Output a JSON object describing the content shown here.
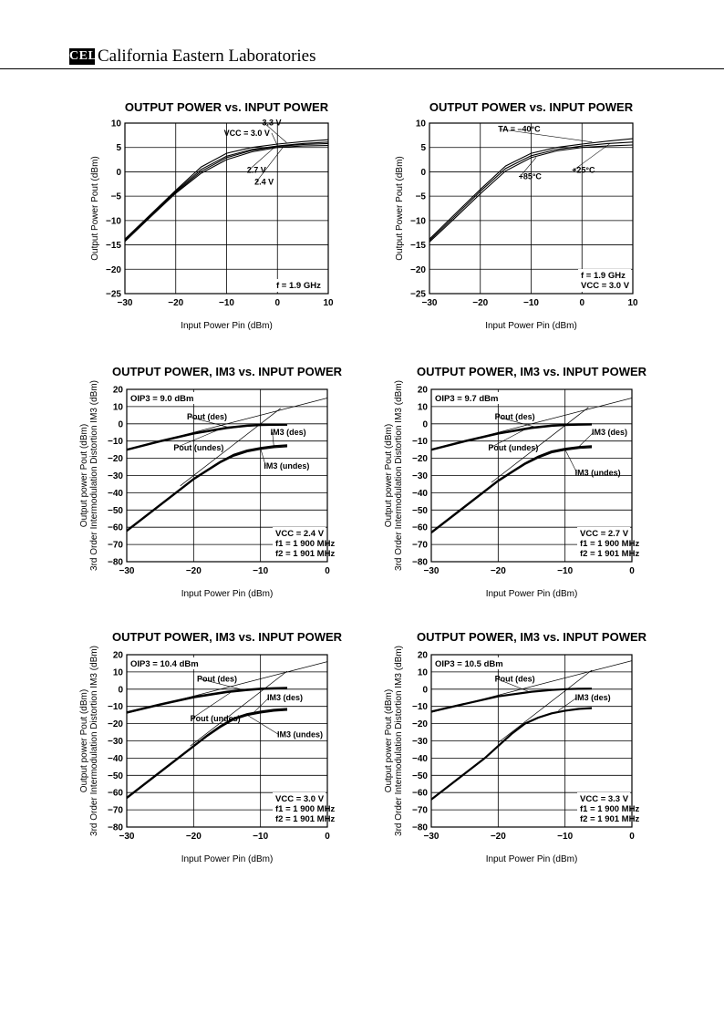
{
  "header": {
    "logo": "CEL",
    "company": "California Eastern Laboratories"
  },
  "chart_data": [
    {
      "type": "line",
      "title": "OUTPUT POWER vs. INPUT POWER",
      "xlabel": "Input Power  Pin (dBm)",
      "ylabel": "Output Power  Pout (dBm)",
      "xlim": [
        -30,
        10
      ],
      "ylim": [
        -25,
        10
      ],
      "xticks": [
        -30,
        -20,
        -10,
        0,
        10
      ],
      "yticks": [
        10,
        5,
        0,
        -5,
        -10,
        -15,
        -20,
        -25
      ],
      "grid": true,
      "series": [
        {
          "name": "VCC = 3.0 V",
          "x": [
            -30,
            -25,
            -20,
            -15,
            -10,
            -5,
            0,
            5,
            10
          ],
          "y": [
            -14,
            -9,
            -4,
            0.5,
            3.2,
            4.6,
            5.3,
            5.8,
            6.1
          ]
        },
        {
          "name": "3.3 V",
          "x": [
            -30,
            -25,
            -20,
            -15,
            -10,
            -5,
            0,
            5,
            10
          ],
          "y": [
            -13.8,
            -8.8,
            -3.8,
            1.0,
            3.8,
            5.0,
            5.7,
            6.2,
            6.6
          ]
        },
        {
          "name": "2.7 V",
          "x": [
            -30,
            -25,
            -20,
            -15,
            -10,
            -5,
            0,
            5,
            10
          ],
          "y": [
            -14.2,
            -9.2,
            -4.2,
            0.1,
            2.9,
            4.4,
            5.2,
            5.6,
            5.8
          ]
        },
        {
          "name": "2.4 V",
          "x": [
            -30,
            -25,
            -20,
            -15,
            -10,
            -5,
            0,
            5,
            10
          ],
          "y": [
            -14.3,
            -9.3,
            -4.4,
            -0.3,
            2.5,
            4.1,
            5.0,
            5.3,
            5.4
          ]
        }
      ],
      "annotations": [
        {
          "text": "f = 1.9 GHz"
        }
      ]
    },
    {
      "type": "line",
      "title": "OUTPUT POWER vs. INPUT POWER",
      "xlabel": "Input Power  Pin (dBm)",
      "ylabel": "Output Power  Pout (dBm)",
      "xlim": [
        -30,
        10
      ],
      "ylim": [
        -25,
        10
      ],
      "xticks": [
        -30,
        -20,
        -10,
        0,
        10
      ],
      "yticks": [
        10,
        5,
        0,
        -5,
        -10,
        -15,
        -20,
        -25
      ],
      "grid": true,
      "series": [
        {
          "name": "TA = –40°C",
          "x": [
            -30,
            -25,
            -20,
            -15,
            -10,
            -5,
            0,
            5,
            10
          ],
          "y": [
            -13.8,
            -8.7,
            -3.6,
            1.2,
            3.8,
            5.0,
            5.7,
            6.3,
            6.8
          ]
        },
        {
          "name": "+25°C",
          "x": [
            -30,
            -25,
            -20,
            -15,
            -10,
            -5,
            0,
            5,
            10
          ],
          "y": [
            -14.1,
            -9.1,
            -4.0,
            0.7,
            3.3,
            4.6,
            5.3,
            5.8,
            6.1
          ]
        },
        {
          "name": "+85°C",
          "x": [
            -30,
            -25,
            -20,
            -15,
            -10,
            -5,
            0,
            5,
            10
          ],
          "y": [
            -14.4,
            -9.5,
            -4.5,
            0.2,
            2.9,
            4.3,
            5.0,
            5.3,
            5.5
          ]
        }
      ],
      "annotations": [
        {
          "text": "f = 1.9 GHz"
        },
        {
          "text": "VCC = 3.0 V"
        }
      ]
    },
    {
      "type": "line",
      "title": "OUTPUT POWER, IM3 vs. INPUT POWER",
      "xlabel": "Input Power  Pin (dBm)",
      "ylabel": "Output power  Pout (dBm)",
      "ylabel2": "3rd Order Intermodulation Distortion  IM3 (dBm)",
      "xlim": [
        -30,
        0
      ],
      "ylim": [
        -80,
        20
      ],
      "xticks": [
        -30,
        -20,
        -10,
        0
      ],
      "yticks": [
        20,
        10,
        0,
        -10,
        -20,
        -30,
        -40,
        -50,
        -60,
        -70,
        -80
      ],
      "grid": true,
      "oip3_label": "OIP3 = 9.0 dBm",
      "series": [
        {
          "name": "Pout (des)",
          "x": [
            -30,
            -25,
            -20,
            -15,
            -12,
            -10,
            -8,
            -6
          ],
          "y": [
            -15,
            -10,
            -5.5,
            -2.2,
            -1.0,
            -0.6,
            -0.5,
            -0.4
          ]
        },
        {
          "name": "Pout (undes)",
          "x": [
            -30,
            -25,
            -20,
            -15,
            -12,
            -10,
            -8,
            -6
          ],
          "y": [
            -15.4,
            -10.5,
            -6.0,
            -2.7,
            -1.5,
            -1.0,
            -0.9,
            -0.8
          ]
        },
        {
          "name": "IM3 (des)",
          "x": [
            -30,
            -25,
            -22,
            -20,
            -18,
            -16,
            -14,
            -12,
            -10,
            -8,
            -6
          ],
          "y": [
            -62,
            -47,
            -38,
            -32,
            -27,
            -22,
            -18,
            -15.5,
            -14,
            -13,
            -12.5
          ]
        },
        {
          "name": "IM3 (undes)",
          "x": [
            -30,
            -25,
            -22,
            -20,
            -18,
            -16,
            -14,
            -12,
            -10,
            -8,
            -6
          ],
          "y": [
            -62.5,
            -47.5,
            -38.5,
            -32.5,
            -27.5,
            -22.6,
            -18.8,
            -16.3,
            -14.8,
            -13.8,
            -13.3
          ]
        },
        {
          "name": "",
          "x": [
            -30,
            0
          ],
          "y": [
            -15,
            15
          ]
        },
        {
          "name": "",
          "x": [
            -22,
            -7
          ],
          "y": [
            -36,
            9
          ]
        }
      ],
      "annotations": [
        {
          "text": "VCC = 2.4 V"
        },
        {
          "text": "f1 = 1 900 MHz"
        },
        {
          "text": "f2 = 1 901 MHz"
        }
      ]
    },
    {
      "type": "line",
      "title": "OUTPUT POWER, IM3 vs. INPUT POWER",
      "xlabel": "Input Power  Pin (dBm)",
      "ylabel": "Output power  Pout (dBm)",
      "ylabel2": "3rd Order Intermodulation Distortion  IM3 (dBm)",
      "xlim": [
        -30,
        0
      ],
      "ylim": [
        -80,
        20
      ],
      "xticks": [
        -30,
        -20,
        -10,
        0
      ],
      "yticks": [
        20,
        10,
        0,
        -10,
        -20,
        -30,
        -40,
        -50,
        -60,
        -70,
        -80
      ],
      "grid": true,
      "oip3_label": "OIP3 = 9.7 dBm",
      "series": [
        {
          "name": "Pout (des)",
          "x": [
            -30,
            -25,
            -20,
            -15,
            -12,
            -10,
            -8,
            -6
          ],
          "y": [
            -15,
            -10,
            -5.5,
            -2.2,
            -1.0,
            -0.5,
            -0.3,
            -0.2
          ]
        },
        {
          "name": "Pout (undes)",
          "x": [
            -30,
            -25,
            -20,
            -15,
            -12,
            -10,
            -8,
            -6
          ],
          "y": [
            -15.4,
            -10.5,
            -6.0,
            -2.7,
            -1.5,
            -1.0,
            -0.8,
            -0.7
          ]
        },
        {
          "name": "IM3 (des)",
          "x": [
            -30,
            -25,
            -22,
            -20,
            -18,
            -16,
            -14,
            -12,
            -10,
            -8,
            -6
          ],
          "y": [
            -63,
            -48,
            -39,
            -33,
            -28,
            -23,
            -19,
            -16,
            -14.5,
            -13.5,
            -13
          ]
        },
        {
          "name": "IM3 (undes)",
          "x": [
            -30,
            -25,
            -22,
            -20,
            -18,
            -16,
            -14,
            -12,
            -10,
            -8,
            -6
          ],
          "y": [
            -63.5,
            -48.5,
            -39.5,
            -33.5,
            -28.5,
            -23.6,
            -19.8,
            -16.8,
            -15.3,
            -14.3,
            -13.8
          ]
        },
        {
          "name": "",
          "x": [
            -30,
            0
          ],
          "y": [
            -15,
            15
          ]
        },
        {
          "name": "",
          "x": [
            -21,
            -6.5
          ],
          "y": [
            -34,
            9.5
          ]
        }
      ],
      "annotations": [
        {
          "text": "VCC = 2.7 V"
        },
        {
          "text": "f1 = 1 900 MHz"
        },
        {
          "text": "f2 = 1 901 MHz"
        }
      ]
    },
    {
      "type": "line",
      "title": "OUTPUT POWER, IM3 vs. INPUT POWER",
      "xlabel": "Input Power  Pin (dBm)",
      "ylabel": "Output power  Pout (dBm)",
      "ylabel2": "3rd Order Intermodulation Distortion  IM3 (dBm)",
      "xlim": [
        -30,
        0
      ],
      "ylim": [
        -80,
        20
      ],
      "xticks": [
        -30,
        -20,
        -10,
        0
      ],
      "yticks": [
        20,
        10,
        0,
        -10,
        -20,
        -30,
        -40,
        -50,
        -60,
        -70,
        -80
      ],
      "grid": true,
      "oip3_label": "OIP3 = 10.4 dBm",
      "series": [
        {
          "name": "Pout (des)",
          "x": [
            -30,
            -25,
            -20,
            -15,
            -12,
            -10,
            -8,
            -6
          ],
          "y": [
            -13.5,
            -8.8,
            -4.5,
            -1.5,
            -0.3,
            0.3,
            0.6,
            0.8
          ]
        },
        {
          "name": "Pout (undes)",
          "x": [
            -30,
            -25,
            -20,
            -15,
            -12,
            -10,
            -8,
            -6
          ],
          "y": [
            -13.9,
            -9.3,
            -5.0,
            -2.0,
            -0.8,
            -0.2,
            0.1,
            0.3
          ]
        },
        {
          "name": "IM3 (des)",
          "x": [
            -30,
            -25,
            -22,
            -20,
            -18,
            -16,
            -14,
            -12,
            -10,
            -8,
            -6
          ],
          "y": [
            -63,
            -48,
            -39,
            -33,
            -27,
            -21.5,
            -17,
            -14.5,
            -13,
            -12,
            -11.5
          ]
        },
        {
          "name": "IM3 (undes)",
          "x": [
            -30,
            -25,
            -22,
            -20,
            -18,
            -16,
            -14,
            -12,
            -10,
            -8,
            -6
          ],
          "y": [
            -63.5,
            -48.5,
            -39.5,
            -33.5,
            -27.5,
            -22.2,
            -17.8,
            -15.3,
            -13.8,
            -12.8,
            -12.3
          ]
        },
        {
          "name": "",
          "x": [
            -30,
            0
          ],
          "y": [
            -14,
            16
          ]
        },
        {
          "name": "",
          "x": [
            -20.5,
            -6
          ],
          "y": [
            -33,
            10.5
          ]
        }
      ],
      "annotations": [
        {
          "text": "VCC = 3.0 V"
        },
        {
          "text": "f1 = 1 900 MHz"
        },
        {
          "text": "f2 = 1 901 MHz"
        }
      ]
    },
    {
      "type": "line",
      "title": "OUTPUT POWER, IM3 vs. INPUT POWER",
      "xlabel": "Input Power  Pin (dBm)",
      "ylabel": "Output power  Pout (dBm)",
      "ylabel2": "3rd Order Intermodulation Distortion  IM3 (dBm)",
      "xlim": [
        -30,
        0
      ],
      "ylim": [
        -80,
        20
      ],
      "xticks": [
        -30,
        -20,
        -10,
        0
      ],
      "yticks": [
        20,
        10,
        0,
        -10,
        -20,
        -30,
        -40,
        -50,
        -60,
        -70,
        -80
      ],
      "grid": true,
      "oip3_label": "OIP3 = 10.5 dBm",
      "series": [
        {
          "name": "Pout (des)",
          "x": [
            -30,
            -25,
            -20,
            -15,
            -12,
            -10,
            -8,
            -6
          ],
          "y": [
            -13,
            -8.5,
            -4.2,
            -1.5,
            -0.5,
            0.0,
            0.2,
            0.3
          ]
        },
        {
          "name": "IM3 (des)",
          "x": [
            -30,
            -25,
            -22,
            -20,
            -18,
            -16,
            -14,
            -12,
            -10,
            -8,
            -6
          ],
          "y": [
            -64,
            -49,
            -40,
            -33,
            -26,
            -20,
            -16.5,
            -14,
            -12.5,
            -11.5,
            -11
          ]
        },
        {
          "name": "",
          "x": [
            -30,
            0
          ],
          "y": [
            -13.5,
            16.5
          ]
        },
        {
          "name": "",
          "x": [
            -20,
            -6
          ],
          "y": [
            -31,
            11
          ]
        }
      ],
      "annotations": [
        {
          "text": "VCC = 3.3 V"
        },
        {
          "text": "f1 = 1 900 MHz"
        },
        {
          "text": "f2 = 1 901 MHz"
        }
      ]
    }
  ]
}
